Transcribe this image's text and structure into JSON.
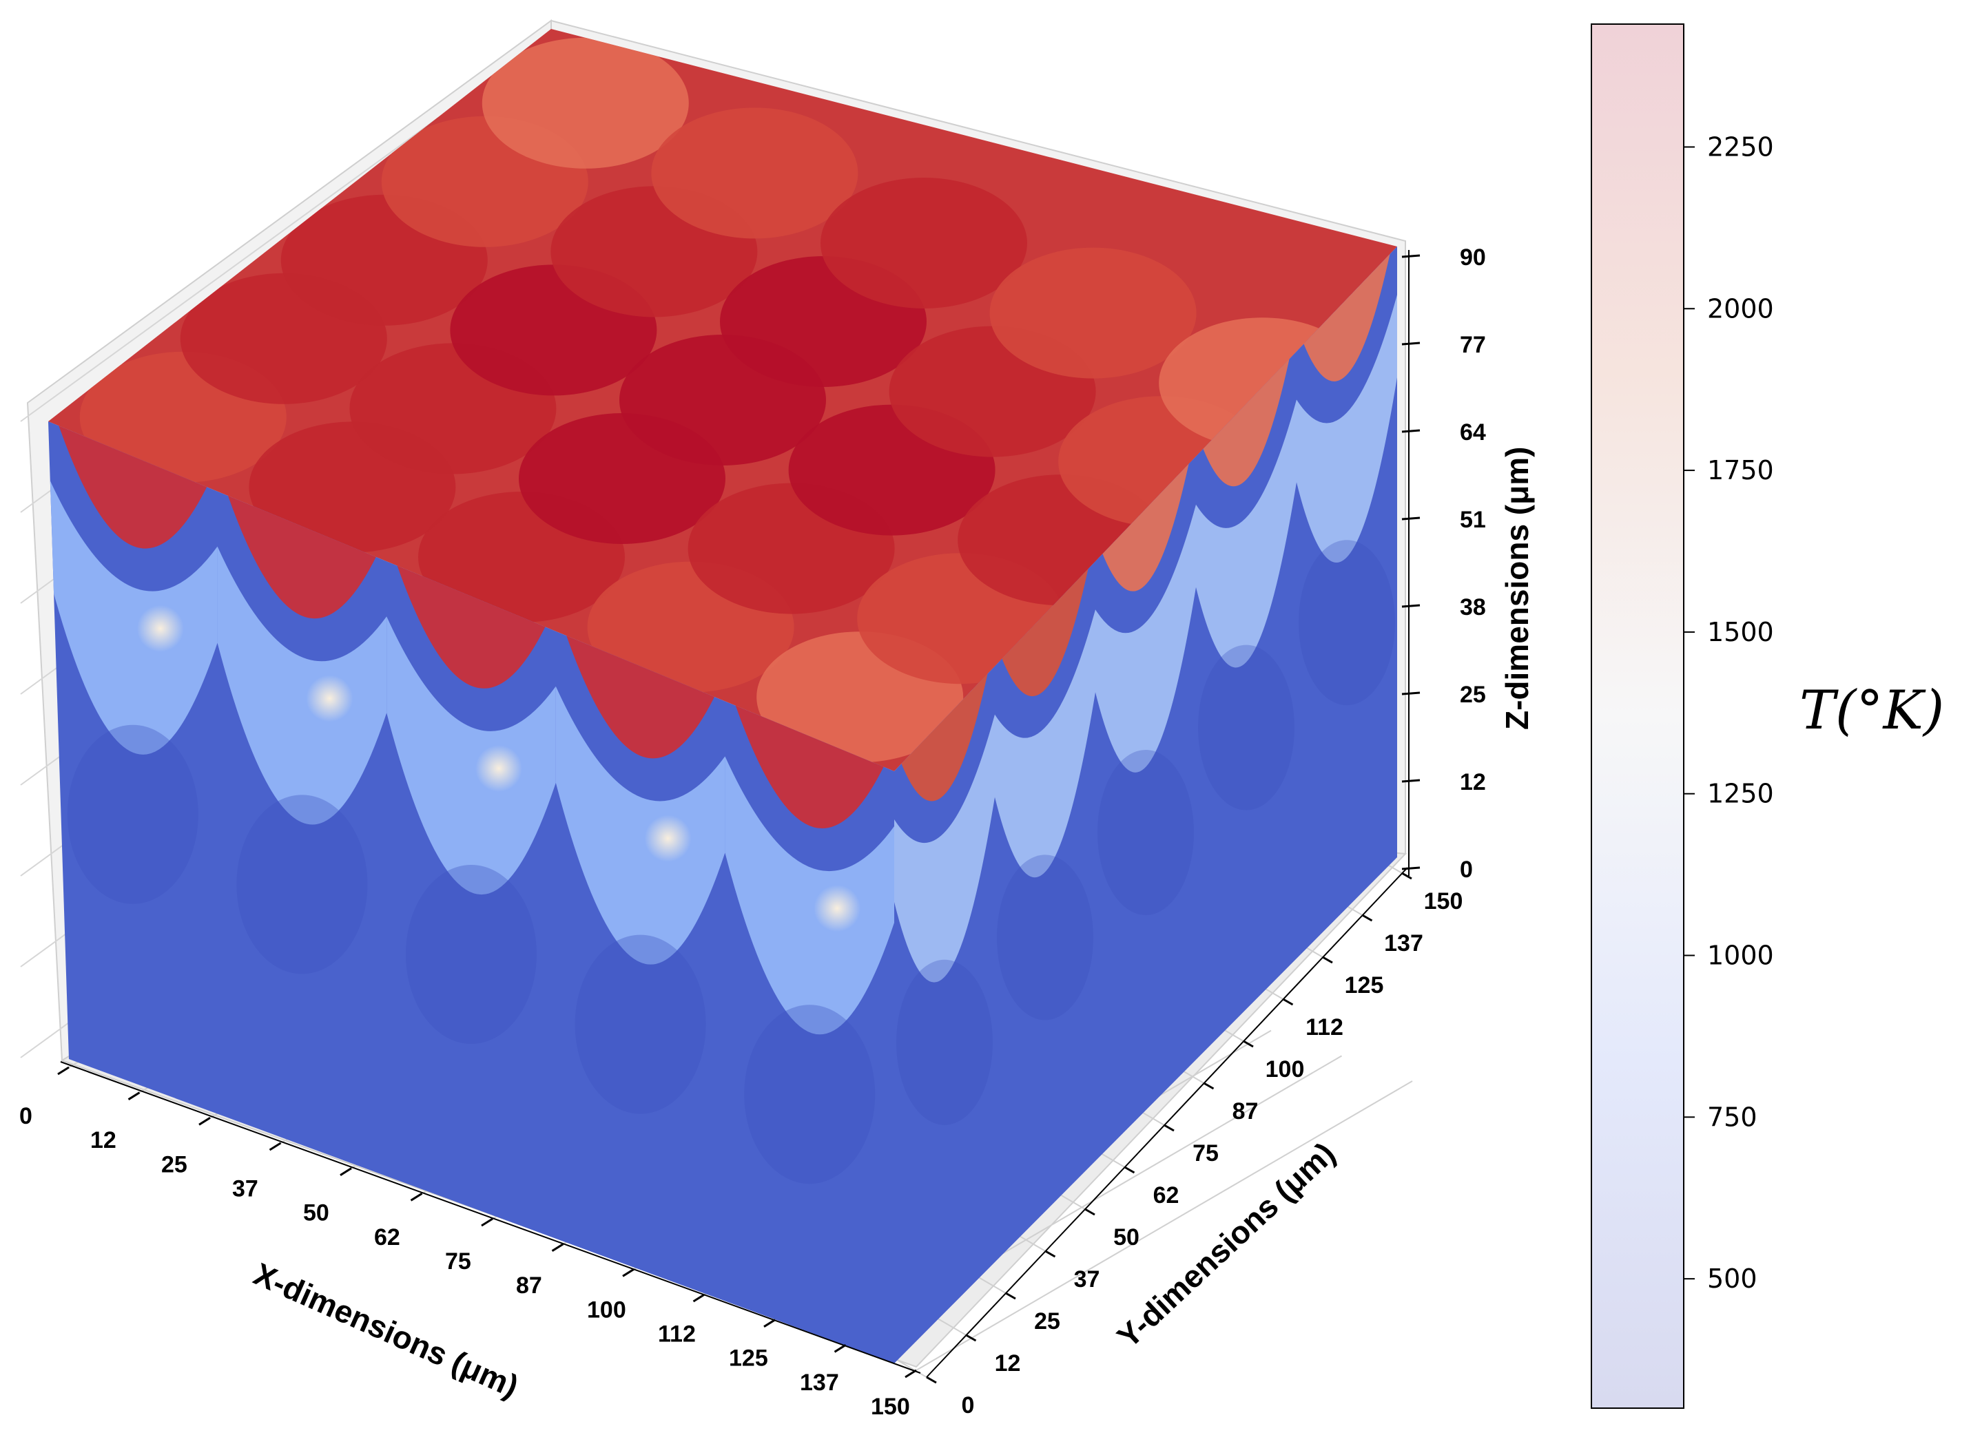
{
  "chart_data": {
    "type": "scatter",
    "projection": "3d",
    "description_of_marks": "voxel scatter of layered melt-pool cells colored by temperature",
    "x_axis": {
      "label": "X-dimensions (μm)",
      "ticks": [
        "0",
        "12",
        "25",
        "37",
        "50",
        "62",
        "75",
        "87",
        "100",
        "112",
        "125",
        "137",
        "150"
      ],
      "range": [
        0,
        150
      ]
    },
    "y_axis": {
      "label": "Y-dimensions (μm)",
      "ticks": [
        "0",
        "12",
        "25",
        "37",
        "50",
        "62",
        "75",
        "87",
        "100",
        "112",
        "125",
        "137",
        "150"
      ],
      "range": [
        0,
        150
      ]
    },
    "z_axis": {
      "label": "Z-dimensions (μm)",
      "ticks": [
        "0",
        "12",
        "25",
        "38",
        "51",
        "64",
        "77",
        "90"
      ],
      "range": [
        0,
        90
      ]
    },
    "colorbar": {
      "title": "T(°K)",
      "colormap": "coolwarm",
      "ticks": [
        "500",
        "750",
        "1000",
        "1250",
        "1500",
        "1750",
        "2000",
        "2250"
      ],
      "range": [
        300,
        2440
      ]
    },
    "layers": [
      {
        "z_range": [
          0,
          30
        ],
        "temperature_approx": 450,
        "color": "#4058c8"
      },
      {
        "z_range": [
          30,
          60
        ],
        "temperature_approx": 900,
        "color": "#8eb0f5"
      },
      {
        "z_range": [
          60,
          90
        ],
        "temperature_approx": 2100,
        "color": "#c8303a"
      }
    ],
    "grid": true
  }
}
